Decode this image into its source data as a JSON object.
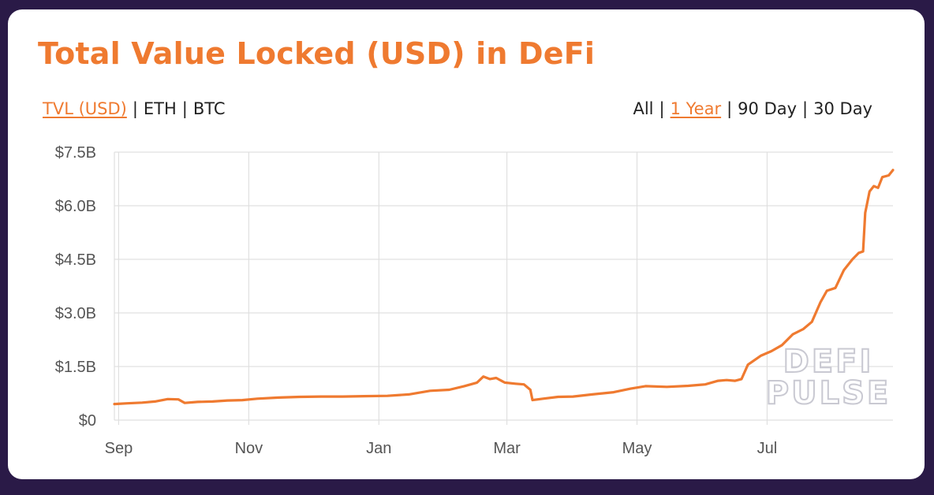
{
  "title": "Total Value Locked (USD) in DeFi",
  "metric_tabs": [
    {
      "label": "TVL (USD)",
      "active": true
    },
    {
      "label": "ETH",
      "active": false
    },
    {
      "label": "BTC",
      "active": false
    }
  ],
  "range_tabs": [
    {
      "label": "All",
      "active": false
    },
    {
      "label": "1 Year",
      "active": true
    },
    {
      "label": "90 Day",
      "active": false
    },
    {
      "label": "30 Day",
      "active": false
    }
  ],
  "separator": "|",
  "watermark": [
    "DEFI",
    "PULSE"
  ],
  "colors": {
    "accent": "#ef7a30",
    "background": "#2a1a47",
    "grid": "#e0e0e0"
  },
  "chart_data": {
    "type": "line",
    "title": "Total Value Locked (USD) in DeFi",
    "xlabel": "",
    "ylabel": "",
    "x_tick_labels": [
      "Sep",
      "Nov",
      "Jan",
      "Mar",
      "May",
      "Jul"
    ],
    "x_tick_dates": [
      "2019-09-01",
      "2019-11-01",
      "2020-01-01",
      "2020-03-01",
      "2020-05-01",
      "2020-07-01"
    ],
    "xlim": [
      "2019-08-30",
      "2020-08-29"
    ],
    "y_tick_labels": [
      "$0",
      "$1.5B",
      "$3.0B",
      "$4.5B",
      "$6.0B",
      "$7.5B"
    ],
    "y_tick_values": [
      0,
      1.5,
      3.0,
      4.5,
      6.0,
      7.5
    ],
    "ylim": [
      0,
      7.5
    ],
    "y_unit": "billion USD",
    "grid": true,
    "series": [
      {
        "color": "#ef7a30",
        "points": [
          [
            "2019-08-30",
            0.45
          ],
          [
            "2019-09-05",
            0.47
          ],
          [
            "2019-09-12",
            0.49
          ],
          [
            "2019-09-18",
            0.52
          ],
          [
            "2019-09-24",
            0.59
          ],
          [
            "2019-09-29",
            0.58
          ],
          [
            "2019-10-02",
            0.48
          ],
          [
            "2019-10-08",
            0.51
          ],
          [
            "2019-10-15",
            0.52
          ],
          [
            "2019-10-22",
            0.55
          ],
          [
            "2019-10-29",
            0.56
          ],
          [
            "2019-11-05",
            0.6
          ],
          [
            "2019-11-15",
            0.63
          ],
          [
            "2019-11-25",
            0.65
          ],
          [
            "2019-12-05",
            0.66
          ],
          [
            "2019-12-15",
            0.66
          ],
          [
            "2019-12-25",
            0.67
          ],
          [
            "2020-01-05",
            0.68
          ],
          [
            "2020-01-15",
            0.72
          ],
          [
            "2020-01-25",
            0.82
          ],
          [
            "2020-02-03",
            0.85
          ],
          [
            "2020-02-10",
            0.95
          ],
          [
            "2020-02-16",
            1.05
          ],
          [
            "2020-02-19",
            1.22
          ],
          [
            "2020-02-22",
            1.15
          ],
          [
            "2020-02-25",
            1.18
          ],
          [
            "2020-02-29",
            1.05
          ],
          [
            "2020-03-05",
            1.02
          ],
          [
            "2020-03-09",
            1.0
          ],
          [
            "2020-03-12",
            0.85
          ],
          [
            "2020-03-13",
            0.56
          ],
          [
            "2020-03-18",
            0.6
          ],
          [
            "2020-03-25",
            0.65
          ],
          [
            "2020-04-01",
            0.66
          ],
          [
            "2020-04-10",
            0.72
          ],
          [
            "2020-04-20",
            0.78
          ],
          [
            "2020-04-28",
            0.88
          ],
          [
            "2020-05-05",
            0.95
          ],
          [
            "2020-05-15",
            0.93
          ],
          [
            "2020-05-25",
            0.96
          ],
          [
            "2020-06-02",
            1.0
          ],
          [
            "2020-06-08",
            1.1
          ],
          [
            "2020-06-12",
            1.12
          ],
          [
            "2020-06-16",
            1.1
          ],
          [
            "2020-06-19",
            1.15
          ],
          [
            "2020-06-22",
            1.55
          ],
          [
            "2020-06-28",
            1.8
          ],
          [
            "2020-07-03",
            1.93
          ],
          [
            "2020-07-08",
            2.1
          ],
          [
            "2020-07-13",
            2.4
          ],
          [
            "2020-07-18",
            2.55
          ],
          [
            "2020-07-22",
            2.75
          ],
          [
            "2020-07-26",
            3.3
          ],
          [
            "2020-07-29",
            3.62
          ],
          [
            "2020-08-02",
            3.7
          ],
          [
            "2020-08-06",
            4.2
          ],
          [
            "2020-08-10",
            4.5
          ],
          [
            "2020-08-13",
            4.68
          ],
          [
            "2020-08-15",
            4.72
          ],
          [
            "2020-08-16",
            5.8
          ],
          [
            "2020-08-18",
            6.4
          ],
          [
            "2020-08-20",
            6.55
          ],
          [
            "2020-08-22",
            6.5
          ],
          [
            "2020-08-24",
            6.8
          ],
          [
            "2020-08-27",
            6.85
          ],
          [
            "2020-08-29",
            7.0
          ]
        ]
      }
    ]
  }
}
